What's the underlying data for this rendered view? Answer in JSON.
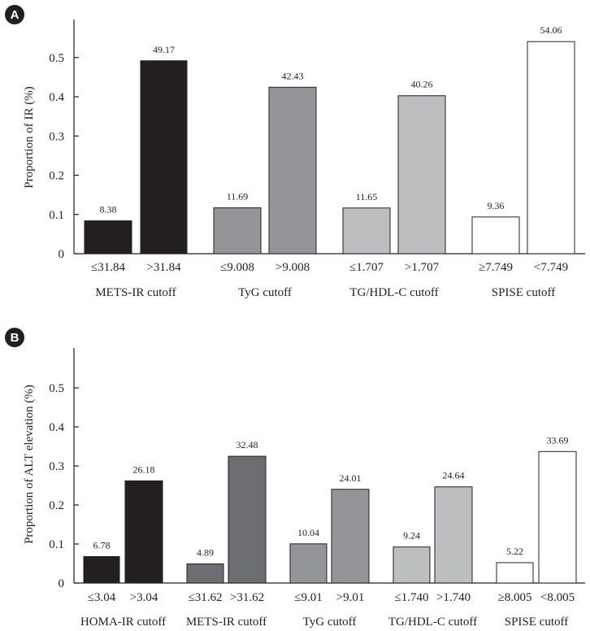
{
  "colors": {
    "black": "#231f20",
    "dark_gray": "#6d6e71",
    "mid_gray": "#939598",
    "light_gray": "#bcbec0",
    "white": "#ffffff"
  },
  "chart_data": [
    {
      "panel": "A",
      "type": "bar",
      "ylabel": "Proportion of IR (%)",
      "ylim": [
        0,
        0.6
      ],
      "yticks": [
        0,
        0.1,
        0.2,
        0.3,
        0.4,
        0.5
      ],
      "ytick_labels": [
        "0",
        "0.1",
        "0.2",
        "0.3",
        "0.4",
        "0.5"
      ],
      "grid": false,
      "groups": [
        {
          "label": "METS-IR cutoff",
          "color": "black",
          "bars": [
            {
              "category": "≤31.84",
              "value": 0.0838,
              "label": "8.38"
            },
            {
              "category": ">31.84",
              "value": 0.4917,
              "label": "49.17"
            }
          ]
        },
        {
          "label": "TyG cutoff",
          "color": "mid_gray",
          "bars": [
            {
              "category": "≤9.008",
              "value": 0.1169,
              "label": "11.69"
            },
            {
              "category": ">9.008",
              "value": 0.4243,
              "label": "42.43"
            }
          ]
        },
        {
          "label": "TG/HDL-C cutoff",
          "color": "light_gray",
          "bars": [
            {
              "category": "≤1.707",
              "value": 0.1165,
              "label": "11.65"
            },
            {
              "category": ">1.707",
              "value": 0.4026,
              "label": "40.26"
            }
          ]
        },
        {
          "label": "SPISE cutoff",
          "color": "white",
          "bars": [
            {
              "category": "≥7.749",
              "value": 0.0936,
              "label": "9.36"
            },
            {
              "category": "<7.749",
              "value": 0.5406,
              "label": "54.06"
            }
          ]
        }
      ]
    },
    {
      "panel": "B",
      "type": "bar",
      "ylabel": "Proportion of ALT elevation (%)",
      "ylim": [
        0,
        0.6
      ],
      "yticks": [
        0,
        0.1,
        0.2,
        0.3,
        0.4,
        0.5
      ],
      "ytick_labels": [
        "0",
        "0.1",
        "0.2",
        "0.3",
        "0.4",
        "0.5"
      ],
      "grid": false,
      "groups": [
        {
          "label": "HOMA-IR cutoff",
          "color": "black",
          "bars": [
            {
              "category": "≤3.04",
              "value": 0.0678,
              "label": "6.78"
            },
            {
              "category": ">3.04",
              "value": 0.2618,
              "label": "26.18"
            }
          ]
        },
        {
          "label": "METS-IR cutoff",
          "color": "dark_gray",
          "bars": [
            {
              "category": "≤31.62",
              "value": 0.0489,
              "label": "4.89"
            },
            {
              "category": ">31.62",
              "value": 0.3248,
              "label": "32.48"
            }
          ]
        },
        {
          "label": "TyG cutoff",
          "color": "mid_gray",
          "bars": [
            {
              "category": "≤9.01",
              "value": 0.1004,
              "label": "10.04"
            },
            {
              "category": ">9.01",
              "value": 0.2401,
              "label": "24.01"
            }
          ]
        },
        {
          "label": "TG/HDL-C cutoff",
          "color": "light_gray",
          "bars": [
            {
              "category": "≤1.740",
              "value": 0.0924,
              "label": "9.24"
            },
            {
              "category": ">1.740",
              "value": 0.2464,
              "label": "24.64"
            }
          ]
        },
        {
          "label": "SPISE cutoff",
          "color": "white",
          "bars": [
            {
              "category": "≥8.005",
              "value": 0.0522,
              "label": "5.22"
            },
            {
              "category": "<8.005",
              "value": 0.3369,
              "label": "33.69"
            }
          ]
        }
      ]
    }
  ]
}
